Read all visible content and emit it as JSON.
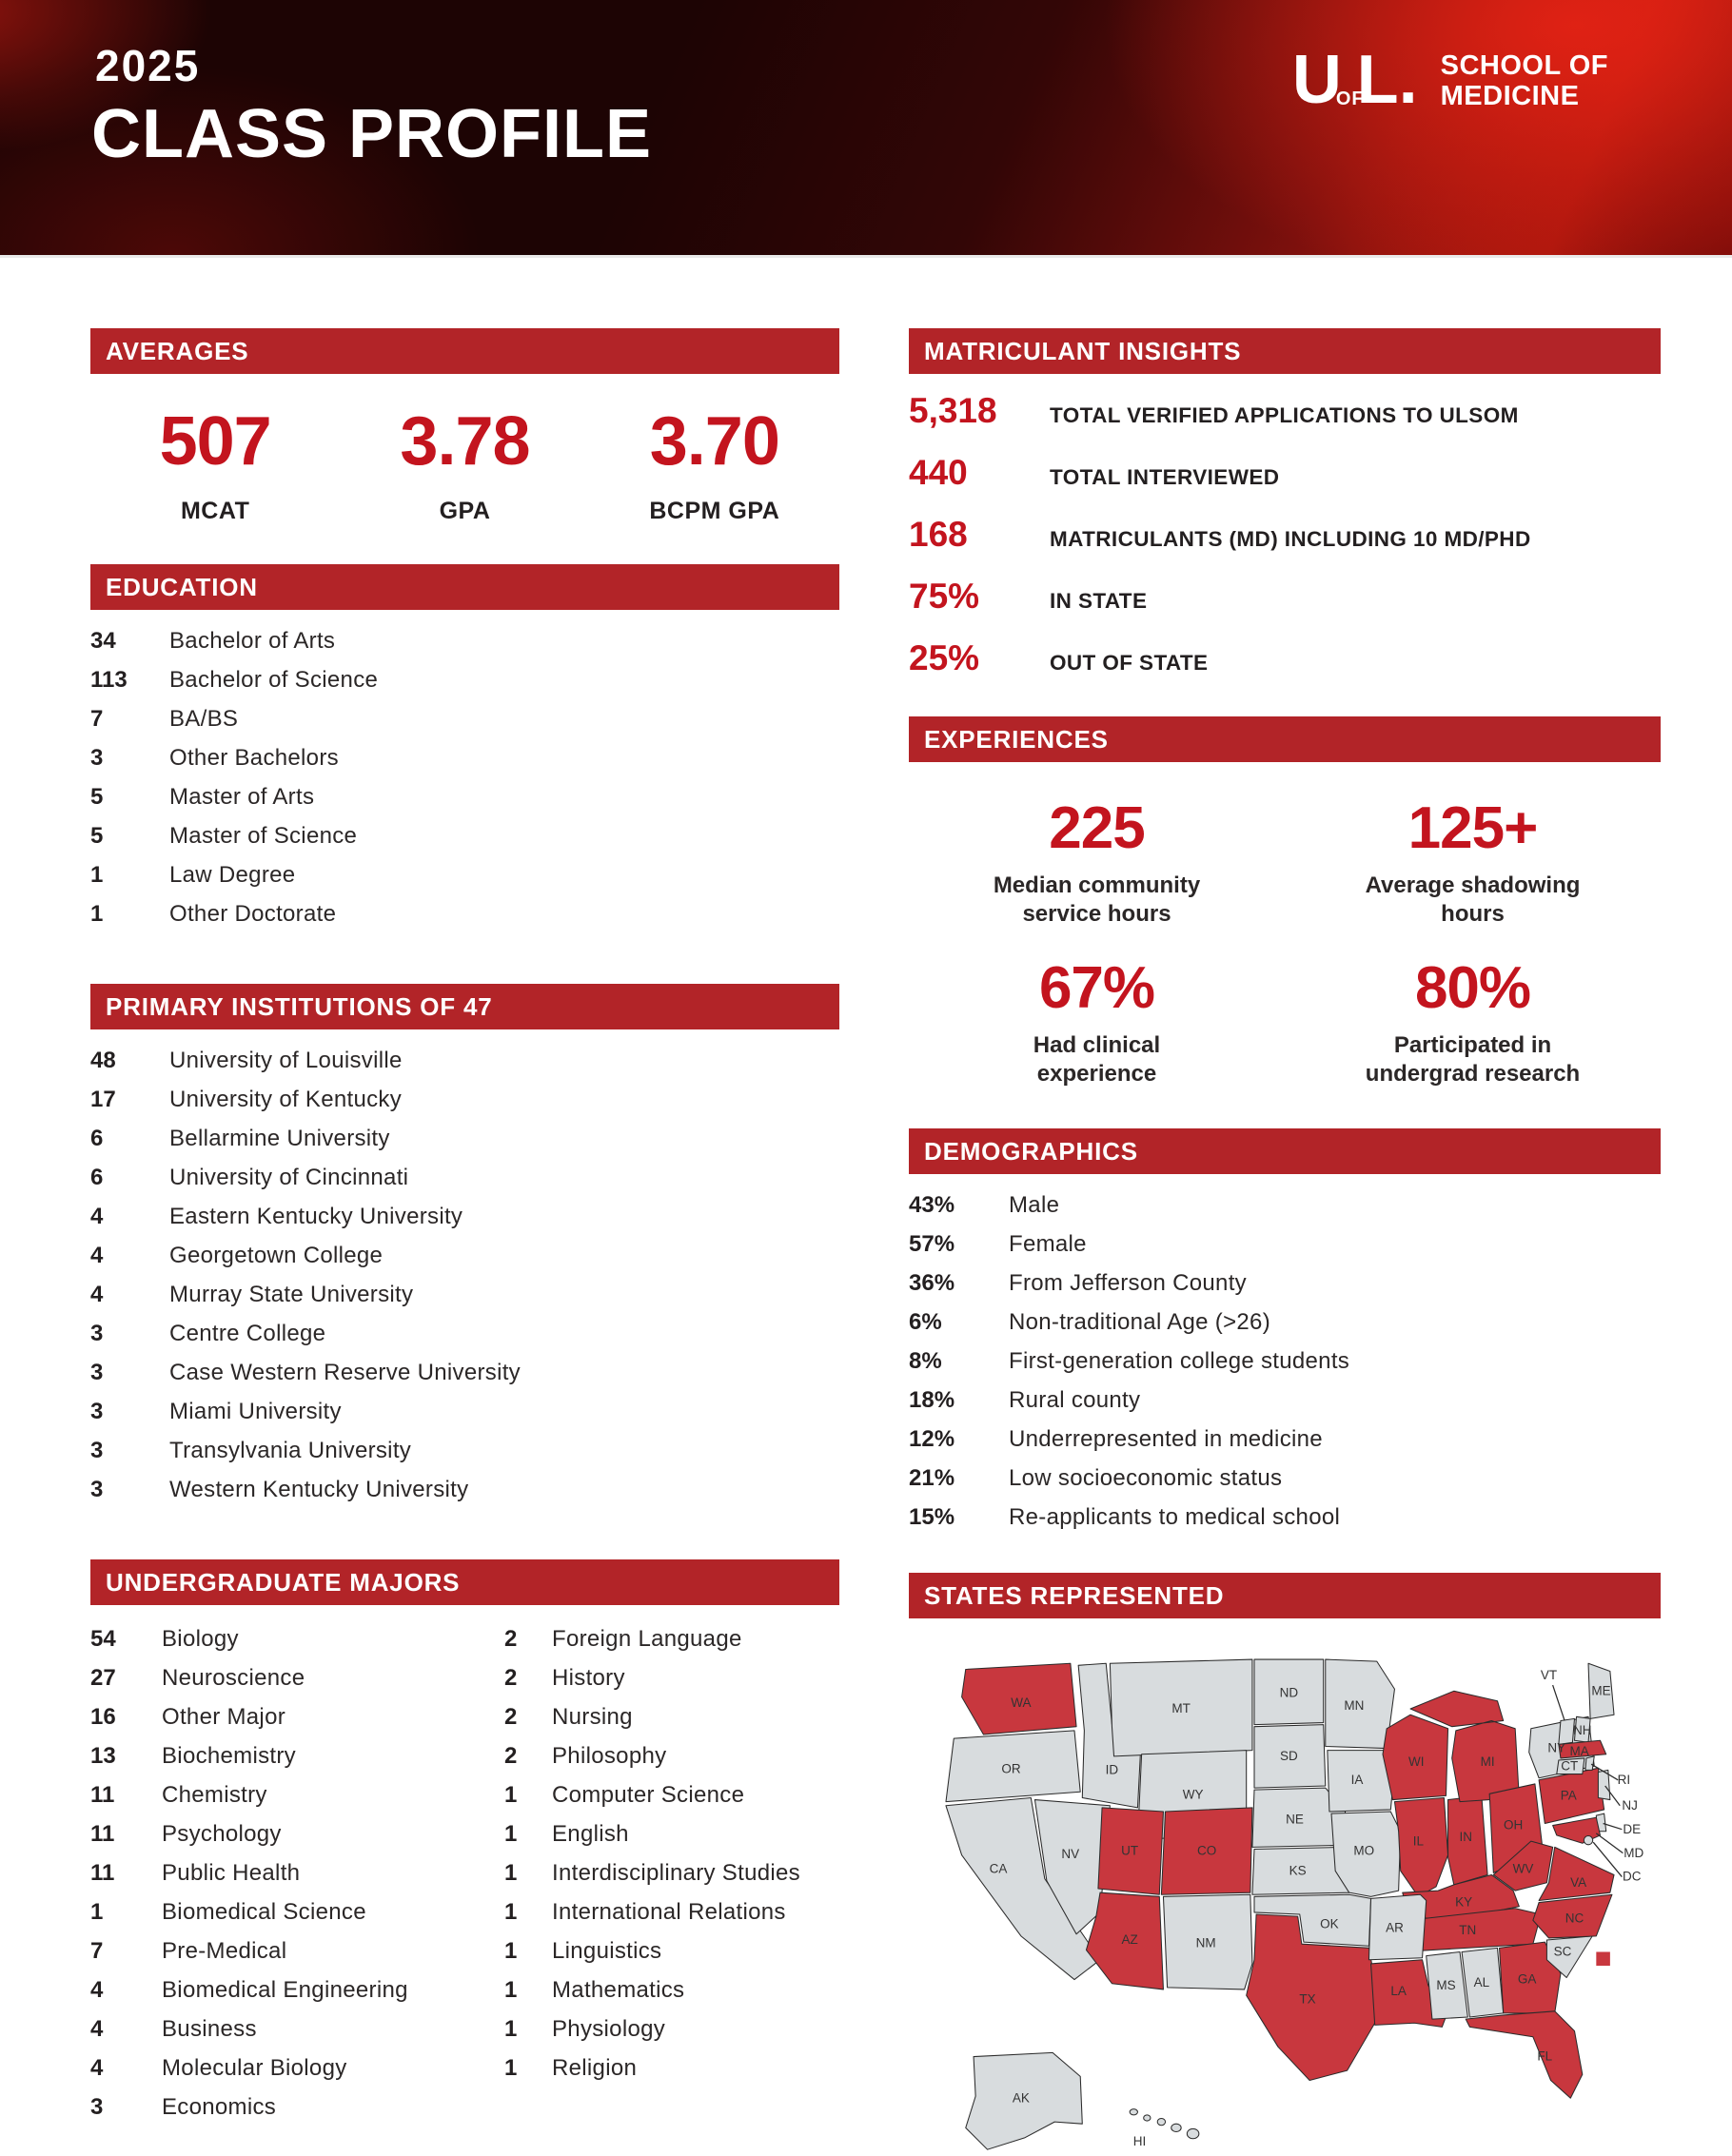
{
  "header": {
    "year": "2025",
    "title": "CLASS PROFILE",
    "logo": {
      "u": "U",
      "of": "OF",
      "l": "L.",
      "line1": "SCHOOL OF",
      "line2": "MEDICINE"
    }
  },
  "colors": {
    "section_bar_red": "#b22428",
    "stat_red": "#c3141e",
    "header_bright_red": "#c41d10",
    "text_dark": "#231f20"
  },
  "averages": {
    "heading": "AVERAGES",
    "stats": [
      {
        "value": "507",
        "label": "MCAT"
      },
      {
        "value": "3.78",
        "label": "GPA"
      },
      {
        "value": "3.70",
        "label": "BCPM GPA"
      }
    ]
  },
  "education": {
    "heading": "EDUCATION",
    "items": [
      {
        "count": "34",
        "label": "Bachelor of Arts"
      },
      {
        "count": "113",
        "label": "Bachelor of Science"
      },
      {
        "count": "7",
        "label": "BA/BS"
      },
      {
        "count": "3",
        "label": "Other Bachelors"
      },
      {
        "count": "5",
        "label": "Master of Arts"
      },
      {
        "count": "5",
        "label": "Master of Science"
      },
      {
        "count": "1",
        "label": "Law Degree"
      },
      {
        "count": "1",
        "label": "Other Doctorate"
      }
    ]
  },
  "institutions": {
    "heading": "PRIMARY INSTITUTIONS OF 47",
    "items": [
      {
        "count": "48",
        "label": "University of Louisville"
      },
      {
        "count": "17",
        "label": "University of Kentucky"
      },
      {
        "count": "6",
        "label": "Bellarmine University"
      },
      {
        "count": "6",
        "label": "University of Cincinnati"
      },
      {
        "count": "4",
        "label": "Eastern Kentucky University"
      },
      {
        "count": "4",
        "label": "Georgetown College"
      },
      {
        "count": "4",
        "label": "Murray State University"
      },
      {
        "count": "3",
        "label": "Centre College"
      },
      {
        "count": "3",
        "label": "Case Western Reserve University"
      },
      {
        "count": "3",
        "label": "Miami University"
      },
      {
        "count": "3",
        "label": "Transylvania University"
      },
      {
        "count": "3",
        "label": "Western Kentucky University"
      }
    ]
  },
  "majors": {
    "heading": "UNDERGRADUATE MAJORS",
    "col1": [
      {
        "count": "54",
        "label": "Biology"
      },
      {
        "count": "27",
        "label": "Neuroscience"
      },
      {
        "count": "16",
        "label": "Other Major"
      },
      {
        "count": "13",
        "label": "Biochemistry"
      },
      {
        "count": "11",
        "label": "Chemistry"
      },
      {
        "count": "11",
        "label": "Psychology"
      },
      {
        "count": "11",
        "label": "Public Health"
      },
      {
        "count": "1",
        "label": "Biomedical Science"
      },
      {
        "count": "7",
        "label": "Pre-Medical"
      },
      {
        "count": "4",
        "label": "Biomedical Engineering"
      },
      {
        "count": "4",
        "label": "Business"
      },
      {
        "count": "4",
        "label": "Molecular Biology"
      },
      {
        "count": "3",
        "label": "Economics"
      }
    ],
    "col2": [
      {
        "count": "2",
        "label": "Foreign Language"
      },
      {
        "count": "2",
        "label": "History"
      },
      {
        "count": "2",
        "label": "Nursing"
      },
      {
        "count": "2",
        "label": "Philosophy"
      },
      {
        "count": "1",
        "label": "Computer Science"
      },
      {
        "count": "1",
        "label": "English"
      },
      {
        "count": "1",
        "label": "Interdisciplinary Studies"
      },
      {
        "count": "1",
        "label": "International Relations"
      },
      {
        "count": "1",
        "label": "Linguistics"
      },
      {
        "count": "1",
        "label": "Mathematics"
      },
      {
        "count": "1",
        "label": "Physiology"
      },
      {
        "count": "1",
        "label": "Religion"
      }
    ]
  },
  "matriculants": {
    "heading": "MATRICULANT INSIGHTS",
    "items": [
      {
        "value": "5,318",
        "label": "TOTAL VERIFIED APPLICATIONS TO ULSOM"
      },
      {
        "value": "440",
        "label": "TOTAL INTERVIEWED"
      },
      {
        "value": "168",
        "label": "MATRICULANTS (MD) INCLUDING 10 MD/PHD"
      },
      {
        "value": "75%",
        "label": "IN STATE"
      },
      {
        "value": "25%",
        "label": "OUT OF STATE"
      }
    ]
  },
  "experiences": {
    "heading": "EXPERIENCES",
    "items": [
      {
        "value": "225",
        "line1": "Median community",
        "line2": "service hours"
      },
      {
        "value": "125+",
        "line1": "Average shadowing",
        "line2": "hours"
      },
      {
        "value": "67%",
        "line1": "Had clinical",
        "line2": "experience"
      },
      {
        "value": "80%",
        "line1": "Participated in",
        "line2": "undergrad research"
      }
    ]
  },
  "demographics": {
    "heading": "DEMOGRAPHICS",
    "items": [
      {
        "count": "43%",
        "label": "Male"
      },
      {
        "count": "57%",
        "label": "Female"
      },
      {
        "count": "36%",
        "label": "From Jefferson County"
      },
      {
        "count": "6%",
        "label": "Non-traditional Age (>26)"
      },
      {
        "count": "8%",
        "label": "First-generation college students"
      },
      {
        "count": "18%",
        "label": "Rural county"
      },
      {
        "count": "12%",
        "label": "Underrepresented in medicine"
      },
      {
        "count": "21%",
        "label": "Low socioeconomic status"
      },
      {
        "count": "15%",
        "label": "Re-applicants to medical school"
      }
    ]
  },
  "states_map": {
    "heading": "STATES REPRESENTED",
    "colors": {
      "represented": "#c8373e",
      "not_represented": "#d8dcde"
    },
    "states": [
      {
        "abbr": "WA",
        "represented": true
      },
      {
        "abbr": "OR",
        "represented": false
      },
      {
        "abbr": "CA",
        "represented": false
      },
      {
        "abbr": "NV",
        "represented": false
      },
      {
        "abbr": "ID",
        "represented": false
      },
      {
        "abbr": "MT",
        "represented": false
      },
      {
        "abbr": "WY",
        "represented": false
      },
      {
        "abbr": "UT",
        "represented": true
      },
      {
        "abbr": "CO",
        "represented": true
      },
      {
        "abbr": "AZ",
        "represented": true
      },
      {
        "abbr": "NM",
        "represented": false
      },
      {
        "abbr": "ND",
        "represented": false
      },
      {
        "abbr": "SD",
        "represented": false
      },
      {
        "abbr": "NE",
        "represented": false
      },
      {
        "abbr": "KS",
        "represented": false
      },
      {
        "abbr": "OK",
        "represented": false
      },
      {
        "abbr": "TX",
        "represented": true
      },
      {
        "abbr": "MN",
        "represented": false
      },
      {
        "abbr": "IA",
        "represented": false
      },
      {
        "abbr": "MO",
        "represented": false
      },
      {
        "abbr": "WI",
        "represented": true
      },
      {
        "abbr": "IL",
        "represented": true
      },
      {
        "abbr": "IN",
        "represented": true
      },
      {
        "abbr": "MI",
        "represented": true
      },
      {
        "abbr": "OH",
        "represented": true
      },
      {
        "abbr": "KY",
        "represented": true
      },
      {
        "abbr": "TN",
        "represented": true
      },
      {
        "abbr": "AR",
        "represented": false
      },
      {
        "abbr": "LA",
        "represented": true
      },
      {
        "abbr": "MS",
        "represented": false
      },
      {
        "abbr": "AL",
        "represented": false
      },
      {
        "abbr": "GA",
        "represented": true
      },
      {
        "abbr": "FL",
        "represented": true
      },
      {
        "abbr": "SC",
        "represented": false
      },
      {
        "abbr": "NC",
        "represented": true
      },
      {
        "abbr": "WV",
        "represented": true
      },
      {
        "abbr": "VA",
        "represented": true
      },
      {
        "abbr": "PA",
        "represented": true
      },
      {
        "abbr": "NY",
        "represented": false
      },
      {
        "abbr": "ME",
        "represented": false
      },
      {
        "abbr": "VT",
        "represented": false
      },
      {
        "abbr": "NH",
        "represented": false
      },
      {
        "abbr": "MA",
        "represented": true
      },
      {
        "abbr": "CT",
        "represented": false
      },
      {
        "abbr": "RI",
        "represented": false
      },
      {
        "abbr": "NJ",
        "represented": false
      },
      {
        "abbr": "DE",
        "represented": false
      },
      {
        "abbr": "MD",
        "represented": true
      },
      {
        "abbr": "DC",
        "represented": false
      },
      {
        "abbr": "AK",
        "represented": false
      },
      {
        "abbr": "HI",
        "represented": false
      }
    ]
  }
}
